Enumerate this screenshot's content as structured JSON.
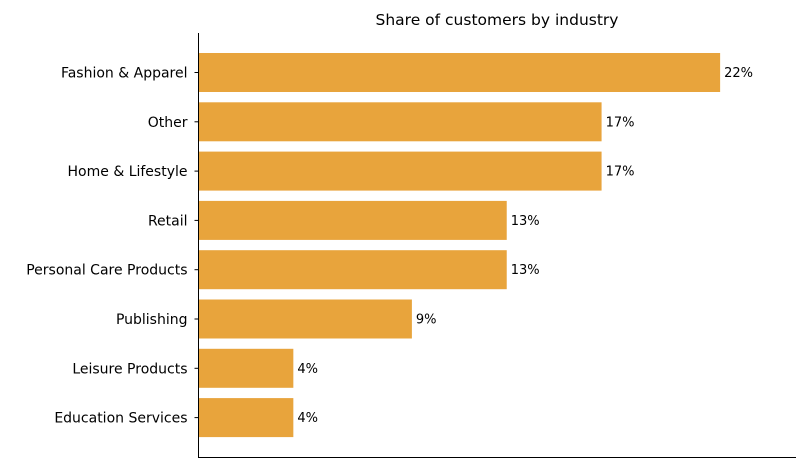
{
  "chart_data": {
    "type": "bar",
    "orientation": "horizontal",
    "title": "Share of customers by industry",
    "xlabel": "",
    "ylabel": "",
    "categories": [
      "Fashion & Apparel",
      "Other",
      "Home & Lifestyle",
      "Retail",
      "Personal Care Products",
      "Publishing",
      "Leisure Products",
      "Education Services"
    ],
    "values": [
      22,
      17,
      17,
      13,
      13,
      9,
      4,
      4
    ],
    "value_labels": [
      "22%",
      "17%",
      "17%",
      "13%",
      "13%",
      "9%",
      "4%",
      "4%"
    ],
    "xlim": [
      0,
      25.2
    ],
    "grid": false,
    "legend": "none",
    "colors": {
      "bar": "#E8A43C"
    }
  }
}
